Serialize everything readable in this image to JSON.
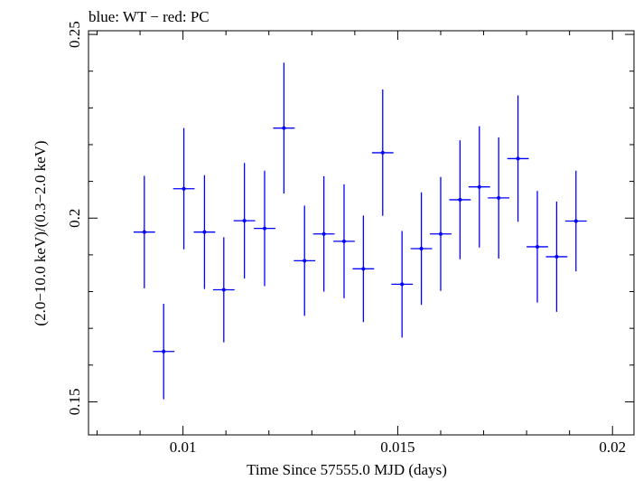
{
  "chart_data": {
    "type": "scatter",
    "title": "blue: WT − red: PC",
    "xlabel": "Time Since 57555.0 MJD (days)",
    "ylabel": "(2.0−10.0 keV)/(0.3−2.0 keV)",
    "xlim": [
      0.0078,
      0.0205
    ],
    "ylim": [
      0.141,
      0.251
    ],
    "xticks": [
      {
        "value": 0.01,
        "label": "0.01"
      },
      {
        "value": 0.015,
        "label": "0.015"
      },
      {
        "value": 0.02,
        "label": "0.02"
      }
    ],
    "yticks": [
      {
        "value": 0.15,
        "label": "0.15"
      },
      {
        "value": 0.2,
        "label": "0.2"
      },
      {
        "value": 0.25,
        "label": "0.25"
      }
    ],
    "colors": {
      "series": "#0000ff",
      "axes": "#000000"
    },
    "series": [
      {
        "color": "#0000ff",
        "points": [
          {
            "x": 0.0091,
            "xerr": 0.00025,
            "y": 0.1962,
            "yerr": 0.0153
          },
          {
            "x": 0.00955,
            "xerr": 0.00025,
            "y": 0.1637,
            "yerr": 0.013
          },
          {
            "x": 0.01002,
            "xerr": 0.00025,
            "y": 0.208,
            "yerr": 0.0165
          },
          {
            "x": 0.0105,
            "xerr": 0.00025,
            "y": 0.1962,
            "yerr": 0.0155
          },
          {
            "x": 0.01095,
            "xerr": 0.00025,
            "y": 0.1805,
            "yerr": 0.0143
          },
          {
            "x": 0.01143,
            "xerr": 0.00025,
            "y": 0.1993,
            "yerr": 0.0157
          },
          {
            "x": 0.0119,
            "xerr": 0.00025,
            "y": 0.1972,
            "yerr": 0.0157
          },
          {
            "x": 0.01235,
            "xerr": 0.00025,
            "y": 0.2245,
            "yerr": 0.0178
          },
          {
            "x": 0.01283,
            "xerr": 0.00025,
            "y": 0.1884,
            "yerr": 0.015
          },
          {
            "x": 0.01328,
            "xerr": 0.00025,
            "y": 0.1957,
            "yerr": 0.0157
          },
          {
            "x": 0.01375,
            "xerr": 0.00025,
            "y": 0.1937,
            "yerr": 0.0155
          },
          {
            "x": 0.0142,
            "xerr": 0.00025,
            "y": 0.1862,
            "yerr": 0.0145
          },
          {
            "x": 0.0151,
            "xerr": 0.00025,
            "y": 0.182,
            "yerr": 0.0145
          },
          {
            "x": 0.01465,
            "xerr": 0.00025,
            "y": 0.2178,
            "yerr": 0.0172
          },
          {
            "x": 0.01555,
            "xerr": 0.00025,
            "y": 0.1917,
            "yerr": 0.0153
          },
          {
            "x": 0.016,
            "xerr": 0.00025,
            "y": 0.1957,
            "yerr": 0.0155
          },
          {
            "x": 0.01645,
            "xerr": 0.00025,
            "y": 0.205,
            "yerr": 0.0162
          },
          {
            "x": 0.0169,
            "xerr": 0.00025,
            "y": 0.2085,
            "yerr": 0.0165
          },
          {
            "x": 0.01735,
            "xerr": 0.00025,
            "y": 0.2055,
            "yerr": 0.0165
          },
          {
            "x": 0.0178,
            "xerr": 0.00025,
            "y": 0.2162,
            "yerr": 0.0172
          },
          {
            "x": 0.01825,
            "xerr": 0.00025,
            "y": 0.1922,
            "yerr": 0.0152
          },
          {
            "x": 0.0187,
            "xerr": 0.00025,
            "y": 0.1895,
            "yerr": 0.015
          },
          {
            "x": 0.01915,
            "xerr": 0.00025,
            "y": 0.1992,
            "yerr": 0.0137
          }
        ]
      }
    ]
  }
}
